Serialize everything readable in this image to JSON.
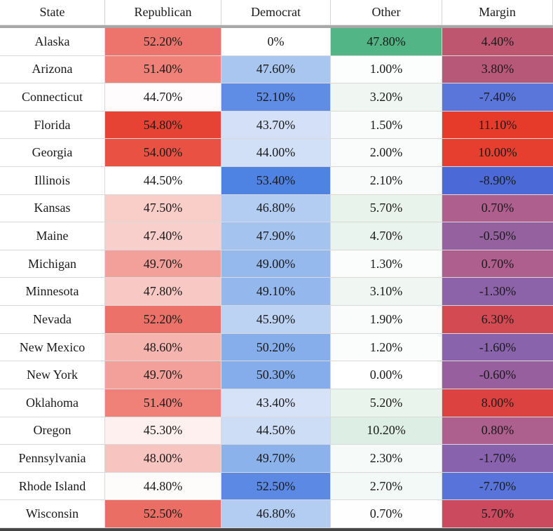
{
  "chart_data": {
    "type": "table",
    "columns": [
      "State",
      "Republican",
      "Democrat",
      "Other",
      "Margin"
    ],
    "rows": [
      [
        "Alaska",
        "52.20%",
        "0%",
        "47.80%",
        "4.40%"
      ],
      [
        "Arizona",
        "51.40%",
        "47.60%",
        "1.00%",
        "3.80%"
      ],
      [
        "Connecticut",
        "44.70%",
        "52.10%",
        "3.20%",
        "-7.40%"
      ],
      [
        "Florida",
        "54.80%",
        "43.70%",
        "1.50%",
        "11.10%"
      ],
      [
        "Georgia",
        "54.00%",
        "44.00%",
        "2.00%",
        "10.00%"
      ],
      [
        "Illinois",
        "44.50%",
        "53.40%",
        "2.10%",
        "-8.90%"
      ],
      [
        "Kansas",
        "47.50%",
        "46.80%",
        "5.70%",
        "0.70%"
      ],
      [
        "Maine",
        "47.40%",
        "47.90%",
        "4.70%",
        "-0.50%"
      ],
      [
        "Michigan",
        "49.70%",
        "49.00%",
        "1.30%",
        "0.70%"
      ],
      [
        "Minnesota",
        "47.80%",
        "49.10%",
        "3.10%",
        "-1.30%"
      ],
      [
        "Nevada",
        "52.20%",
        "45.90%",
        "1.90%",
        "6.30%"
      ],
      [
        "New Mexico",
        "48.60%",
        "50.20%",
        "1.20%",
        "-1.60%"
      ],
      [
        "New York",
        "49.70%",
        "50.30%",
        "0.00%",
        "-0.60%"
      ],
      [
        "Oklahoma",
        "51.40%",
        "43.40%",
        "5.20%",
        "8.00%"
      ],
      [
        "Oregon",
        "45.30%",
        "44.50%",
        "10.20%",
        "0.80%"
      ],
      [
        "Pennsylvania",
        "48.00%",
        "49.70%",
        "2.30%",
        "-1.70%"
      ],
      [
        "Rhode Island",
        "44.80%",
        "52.50%",
        "2.70%",
        "-7.70%"
      ],
      [
        "Wisconsin",
        "52.50%",
        "46.80%",
        "0.70%",
        "5.70%"
      ]
    ]
  },
  "table": {
    "header": {
      "labels": [
        "State",
        "Republican",
        "Democrat",
        "Other",
        "Margin"
      ]
    },
    "rows": [
      {
        "state": "Alaska",
        "cells": [
          {
            "text": "52.20%",
            "bg": "#ec746c"
          },
          {
            "text": "0%",
            "bg": "#ffffff"
          },
          {
            "text": "47.80%",
            "bg": "#52b586"
          },
          {
            "text": "4.40%",
            "bg": "#bf5670"
          }
        ]
      },
      {
        "state": "Arizona",
        "cells": [
          {
            "text": "51.40%",
            "bg": "#ef8179"
          },
          {
            "text": "47.60%",
            "bg": "#a9c6f0"
          },
          {
            "text": "1.00%",
            "bg": "#fcfdfd"
          },
          {
            "text": "3.80%",
            "bg": "#b85878"
          }
        ]
      },
      {
        "state": "Connecticut",
        "cells": [
          {
            "text": "44.70%",
            "bg": "#fefcfc"
          },
          {
            "text": "52.10%",
            "bg": "#5f8ce5"
          },
          {
            "text": "3.20%",
            "bg": "#f0f7f3"
          },
          {
            "text": "-7.40%",
            "bg": "#5a76da"
          }
        ]
      },
      {
        "state": "Florida",
        "cells": [
          {
            "text": "54.80%",
            "bg": "#e74335"
          },
          {
            "text": "43.70%",
            "bg": "#d3e0f7"
          },
          {
            "text": "1.50%",
            "bg": "#fafcfb"
          },
          {
            "text": "11.10%",
            "bg": "#e63a2b"
          }
        ]
      },
      {
        "state": "Georgia",
        "cells": [
          {
            "text": "54.00%",
            "bg": "#e95143"
          },
          {
            "text": "44.00%",
            "bg": "#d1dff7"
          },
          {
            "text": "2.00%",
            "bg": "#f9fcfa"
          },
          {
            "text": "10.00%",
            "bg": "#e63e2f"
          }
        ]
      },
      {
        "state": "Illinois",
        "cells": [
          {
            "text": "44.50%",
            "bg": "#ffffff"
          },
          {
            "text": "53.40%",
            "bg": "#4f83e3"
          },
          {
            "text": "2.10%",
            "bg": "#f8fbfa"
          },
          {
            "text": "-8.90%",
            "bg": "#4b6ad7"
          }
        ]
      },
      {
        "state": "Kansas",
        "cells": [
          {
            "text": "47.50%",
            "bg": "#f9cec9"
          },
          {
            "text": "46.80%",
            "bg": "#b3ccf2"
          },
          {
            "text": "5.70%",
            "bg": "#e7f3eb"
          },
          {
            "text": "0.70%",
            "bg": "#ae5f8e"
          }
        ]
      },
      {
        "state": "Maine",
        "cells": [
          {
            "text": "47.40%",
            "bg": "#f9cfcb"
          },
          {
            "text": "47.90%",
            "bg": "#a5c3ef"
          },
          {
            "text": "4.70%",
            "bg": "#eaf4ee"
          },
          {
            "text": "-0.50%",
            "bg": "#95629f"
          }
        ]
      },
      {
        "state": "Michigan",
        "cells": [
          {
            "text": "49.70%",
            "bg": "#f2a099"
          },
          {
            "text": "49.00%",
            "bg": "#95b9ed"
          },
          {
            "text": "1.30%",
            "bg": "#fbfdfc"
          },
          {
            "text": "0.70%",
            "bg": "#ae5f8e"
          }
        ]
      },
      {
        "state": "Minnesota",
        "cells": [
          {
            "text": "47.80%",
            "bg": "#f8c9c4"
          },
          {
            "text": "49.10%",
            "bg": "#94b8ed"
          },
          {
            "text": "3.10%",
            "bg": "#f0f7f3"
          },
          {
            "text": "-1.30%",
            "bg": "#8c63a8"
          }
        ]
      },
      {
        "state": "Nevada",
        "cells": [
          {
            "text": "52.20%",
            "bg": "#ec7168"
          },
          {
            "text": "45.90%",
            "bg": "#bdd3f4"
          },
          {
            "text": "1.90%",
            "bg": "#f9fcfa"
          },
          {
            "text": "6.30%",
            "bg": "#d44a53"
          }
        ]
      },
      {
        "state": "New Mexico",
        "cells": [
          {
            "text": "48.60%",
            "bg": "#f5b4ad"
          },
          {
            "text": "50.20%",
            "bg": "#86aeeb"
          },
          {
            "text": "1.20%",
            "bg": "#fbfdfc"
          },
          {
            "text": "-1.60%",
            "bg": "#8963ab"
          }
        ]
      },
      {
        "state": "New York",
        "cells": [
          {
            "text": "49.70%",
            "bg": "#f2a099"
          },
          {
            "text": "50.30%",
            "bg": "#85adeb"
          },
          {
            "text": "0.00%",
            "bg": "#ffffff"
          },
          {
            "text": "-0.60%",
            "bg": "#975f9e"
          }
        ]
      },
      {
        "state": "Oklahoma",
        "cells": [
          {
            "text": "51.40%",
            "bg": "#ef8179"
          },
          {
            "text": "43.40%",
            "bg": "#d6e2f8"
          },
          {
            "text": "5.20%",
            "bg": "#e9f4ed"
          },
          {
            "text": "8.00%",
            "bg": "#dc4340"
          }
        ]
      },
      {
        "state": "Oregon",
        "cells": [
          {
            "text": "45.30%",
            "bg": "#fdf0ee"
          },
          {
            "text": "44.50%",
            "bg": "#cdddf6"
          },
          {
            "text": "10.20%",
            "bg": "#ddeee4"
          },
          {
            "text": "0.80%",
            "bg": "#ad5f8d"
          }
        ]
      },
      {
        "state": "Pennsylvania",
        "cells": [
          {
            "text": "48.00%",
            "bg": "#f7c4bf"
          },
          {
            "text": "49.70%",
            "bg": "#8cb2ec"
          },
          {
            "text": "2.30%",
            "bg": "#f6faf8"
          },
          {
            "text": "-1.70%",
            "bg": "#8862ac"
          }
        ]
      },
      {
        "state": "Rhode Island",
        "cells": [
          {
            "text": "44.80%",
            "bg": "#fefbfb"
          },
          {
            "text": "52.50%",
            "bg": "#5b89e4"
          },
          {
            "text": "2.70%",
            "bg": "#f3f9f6"
          },
          {
            "text": "-7.70%",
            "bg": "#5873d9"
          }
        ]
      },
      {
        "state": "Wisconsin",
        "cells": [
          {
            "text": "52.50%",
            "bg": "#eb6e65"
          },
          {
            "text": "46.80%",
            "bg": "#b3ccf2"
          },
          {
            "text": "0.70%",
            "bg": "#fdfefd"
          },
          {
            "text": "5.70%",
            "bg": "#cb4a5e"
          }
        ]
      }
    ]
  },
  "style": {
    "header_separator_color": "#a8a8a8",
    "grid_line_color": "#d9d9d9",
    "bottom_bar_color": "#454545",
    "text_color": "#1a1a1a",
    "republican_max_color": "#e74335",
    "democrat_max_color": "#4f83e3",
    "other_max_color": "#52b586",
    "margin_negative_color": "#4b6ad7",
    "margin_positive_color": "#e63a2b"
  }
}
